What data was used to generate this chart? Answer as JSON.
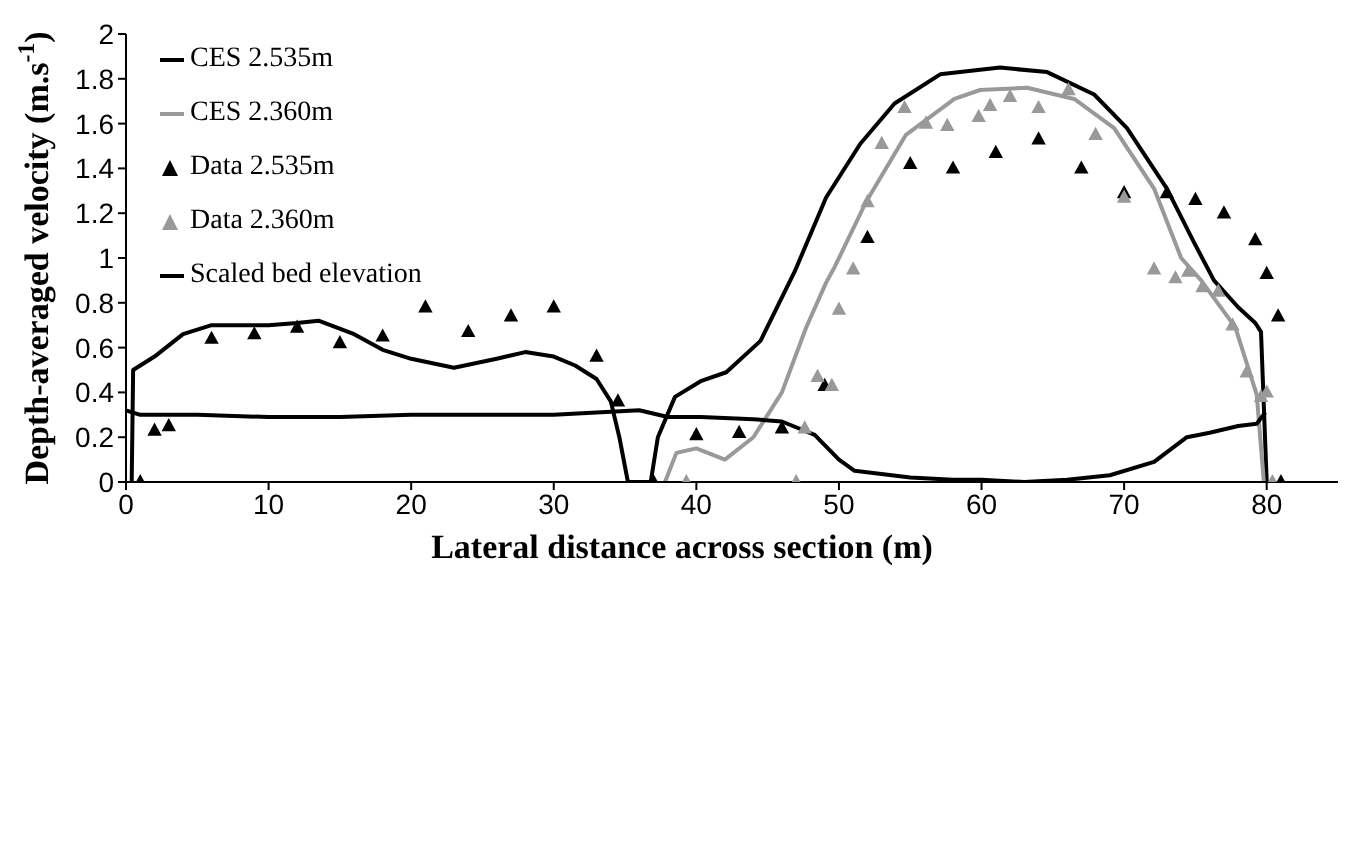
{
  "chart_data": {
    "type": "line",
    "xlabel": "Lateral distance across section (m)",
    "ylabel": "Depth-averaged velocity (m.s$^{-1}$)",
    "xlim": [
      0,
      85
    ],
    "xticks": [
      0,
      10,
      20,
      30,
      40,
      50,
      60,
      70,
      80
    ],
    "ylim": [
      0,
      2
    ],
    "yticks": [
      0,
      0.2,
      0.4,
      0.6,
      0.8,
      1,
      1.2,
      1.4,
      1.6,
      1.8,
      2
    ],
    "grid": false,
    "legend": "top left",
    "series": [
      {
        "name": "CES 2.535m",
        "color": "#000000",
        "marker": "none",
        "x": [
          0.4,
          0.5,
          2,
          4,
          6,
          8,
          10,
          12,
          13.5,
          16,
          18,
          20,
          23,
          26,
          28,
          30,
          31.5,
          33,
          34,
          34.6,
          35.2,
          36.8,
          37.3,
          38.5,
          40.3,
          42.1,
          44.5,
          46.9,
          49.1,
          51.5,
          53.9,
          57.1,
          61.3,
          64.6,
          67.9,
          70.2,
          73,
          74.9,
          76.3,
          78,
          79.2,
          79.6,
          80
        ],
        "values": [
          0,
          0.5,
          0.56,
          0.66,
          0.7,
          0.7,
          0.7,
          0.71,
          0.72,
          0.66,
          0.59,
          0.55,
          0.51,
          0.55,
          0.58,
          0.56,
          0.52,
          0.46,
          0.36,
          0.2,
          0,
          0,
          0.2,
          0.38,
          0.45,
          0.49,
          0.63,
          0.94,
          1.27,
          1.51,
          1.69,
          1.82,
          1.85,
          1.83,
          1.73,
          1.58,
          1.31,
          1.07,
          0.9,
          0.78,
          0.71,
          0.67,
          0
        ]
      },
      {
        "name": "CES 2.360m",
        "color": "#999999",
        "marker": "none",
        "x": [
          37.8,
          38.6,
          40,
          42,
          44,
          46,
          47.7,
          49.1,
          49.7,
          51.9,
          54.7,
          58.1,
          59.9,
          63.2,
          66.5,
          69.3,
          72.1,
          74,
          75.4,
          77.8,
          79.3,
          79.8
        ],
        "values": [
          0,
          0.13,
          0.15,
          0.1,
          0.2,
          0.4,
          0.69,
          0.89,
          0.96,
          1.25,
          1.55,
          1.71,
          1.75,
          1.76,
          1.71,
          1.58,
          1.31,
          1,
          0.9,
          0.69,
          0.39,
          0
        ]
      },
      {
        "name": "Data 2.535m",
        "type": "scatter",
        "color": "#000000",
        "marker": "triangle",
        "x": [
          1,
          2,
          3,
          6,
          9,
          12,
          15,
          18,
          21,
          24,
          27,
          30,
          33,
          34.5,
          37,
          40,
          43,
          46,
          49,
          52,
          55,
          58,
          61,
          64,
          67,
          70,
          73,
          75,
          77,
          79.2,
          80,
          80.8,
          81
        ],
        "values": [
          0,
          0.23,
          0.25,
          0.64,
          0.66,
          0.69,
          0.62,
          0.65,
          0.78,
          0.67,
          0.74,
          0.78,
          0.56,
          0.36,
          0,
          0.21,
          0.22,
          0.24,
          0.43,
          1.09,
          1.42,
          1.4,
          1.47,
          1.53,
          1.4,
          1.29,
          1.29,
          1.26,
          1.2,
          1.08,
          0.93,
          0.74,
          0
        ]
      },
      {
        "name": "Data 2.360m",
        "type": "scatter",
        "color": "#999999",
        "marker": "triangle",
        "x": [
          39.3,
          47,
          47.6,
          48.5,
          49.5,
          50,
          51,
          52,
          53,
          54.6,
          56.1,
          57.6,
          59.8,
          60.6,
          62,
          64,
          66.1,
          68,
          70,
          72.1,
          73.6,
          74.5,
          75.5,
          76.6,
          77.6,
          78.6,
          79.6,
          80,
          80.4
        ],
        "values": [
          0,
          0,
          0.24,
          0.47,
          0.43,
          0.77,
          0.95,
          1.25,
          1.51,
          1.67,
          1.6,
          1.59,
          1.63,
          1.68,
          1.72,
          1.67,
          1.75,
          1.55,
          1.27,
          0.95,
          0.91,
          0.94,
          0.87,
          0.85,
          0.7,
          0.49,
          0.38,
          0.4,
          0
        ]
      },
      {
        "name": "Scaled bed elevation",
        "color": "#000000",
        "marker": "none",
        "x": [
          0,
          1,
          5,
          10,
          15,
          20,
          25,
          30,
          33,
          36,
          38,
          40.3,
          44,
          46,
          48.3,
          50,
          51.1,
          55,
          58,
          60,
          63,
          66,
          69,
          72.1,
          74.4,
          76,
          78,
          79.3,
          79.9
        ],
        "values": [
          0.32,
          0.3,
          0.3,
          0.29,
          0.29,
          0.3,
          0.3,
          0.3,
          0.31,
          0.32,
          0.29,
          0.29,
          0.28,
          0.27,
          0.21,
          0.1,
          0.05,
          0.02,
          0.01,
          0.01,
          0,
          0.01,
          0.03,
          0.09,
          0.2,
          0.22,
          0.25,
          0.26,
          0.31
        ]
      }
    ]
  }
}
